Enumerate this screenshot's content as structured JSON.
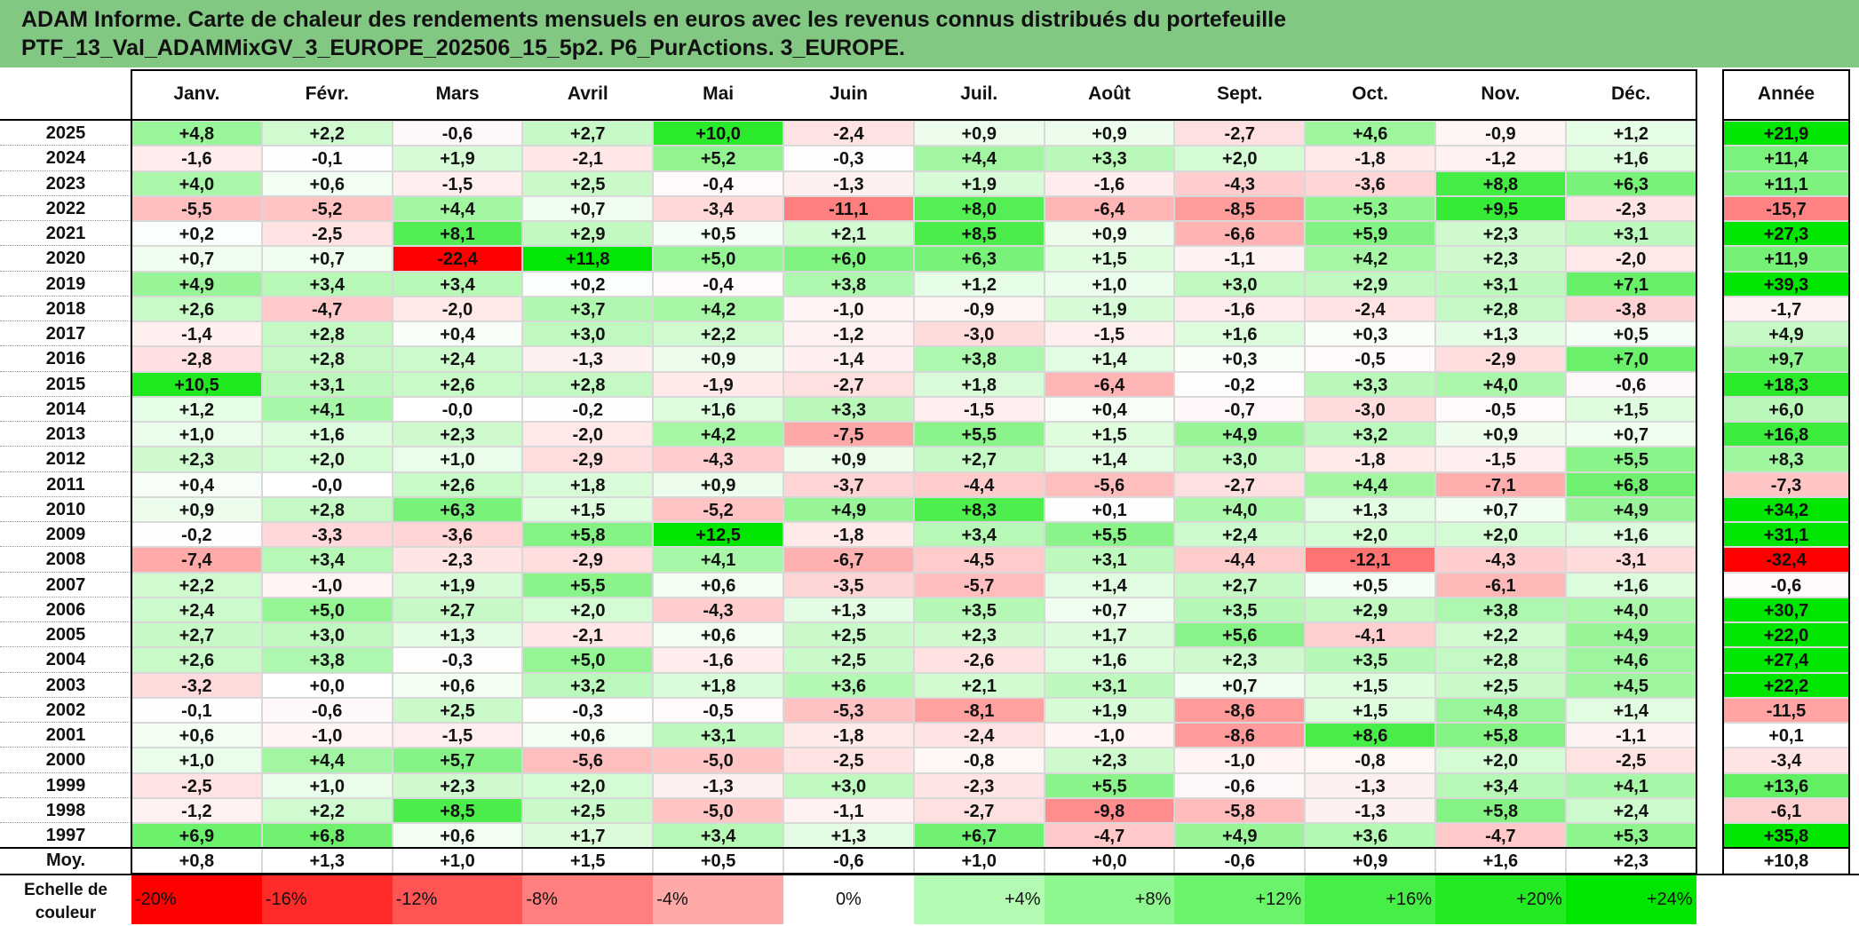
{
  "title_lines": [
    "ADAM Informe. Carte de chaleur des rendements mensuels en euros avec les revenus connus distribués du portefeuille",
    "PTF_13_Val_ADAMMixGV_3_EUROPE_202506_15_5p2. P6_PurActions. 3_EUROPE."
  ],
  "chart_data": {
    "type": "heatmap",
    "months": [
      "Janv.",
      "Févr.",
      "Mars",
      "Avril",
      "Mai",
      "Juin",
      "Juil.",
      "Août",
      "Sept.",
      "Oct.",
      "Nov.",
      "Déc."
    ],
    "annual_header": "Année",
    "rows": [
      {
        "year": "2025",
        "values": [
          "+4,8",
          "+2,2",
          "-0,6",
          "+2,7",
          "+10,0",
          "-2,4",
          "+0,9",
          "+0,9",
          "-2,7",
          "+4,6",
          "-0,9",
          "+1,2"
        ],
        "annual": "+21,9"
      },
      {
        "year": "2024",
        "values": [
          "-1,6",
          "-0,1",
          "+1,9",
          "-2,1",
          "+5,2",
          "-0,3",
          "+4,4",
          "+3,3",
          "+2,0",
          "-1,8",
          "-1,2",
          "+1,6"
        ],
        "annual": "+11,4"
      },
      {
        "year": "2023",
        "values": [
          "+4,0",
          "+0,6",
          "-1,5",
          "+2,5",
          "-0,4",
          "-1,3",
          "+1,9",
          "-1,6",
          "-4,3",
          "-3,6",
          "+8,8",
          "+6,3"
        ],
        "annual": "+11,1"
      },
      {
        "year": "2022",
        "values": [
          "-5,5",
          "-5,2",
          "+4,4",
          "+0,7",
          "-3,4",
          "-11,1",
          "+8,0",
          "-6,4",
          "-8,5",
          "+5,3",
          "+9,5",
          "-2,3"
        ],
        "annual": "-15,7"
      },
      {
        "year": "2021",
        "values": [
          "+0,2",
          "-2,5",
          "+8,1",
          "+2,9",
          "+0,5",
          "+2,1",
          "+8,5",
          "+0,9",
          "-6,6",
          "+5,9",
          "+2,3",
          "+3,1"
        ],
        "annual": "+27,3"
      },
      {
        "year": "2020",
        "values": [
          "+0,7",
          "+0,7",
          "-22,4",
          "+11,8",
          "+5,0",
          "+6,0",
          "+6,3",
          "+1,5",
          "-1,1",
          "+4,2",
          "+2,3",
          "-2,0"
        ],
        "annual": "+11,9"
      },
      {
        "year": "2019",
        "values": [
          "+4,9",
          "+3,4",
          "+3,4",
          "+0,2",
          "-0,4",
          "+3,8",
          "+1,2",
          "+1,0",
          "+3,0",
          "+2,9",
          "+3,1",
          "+7,1"
        ],
        "annual": "+39,3"
      },
      {
        "year": "2018",
        "values": [
          "+2,6",
          "-4,7",
          "-2,0",
          "+3,7",
          "+4,2",
          "-1,0",
          "-0,9",
          "+1,9",
          "-1,6",
          "-2,4",
          "+2,8",
          "-3,8"
        ],
        "annual": "-1,7"
      },
      {
        "year": "2017",
        "values": [
          "-1,4",
          "+2,8",
          "+0,4",
          "+3,0",
          "+2,2",
          "-1,2",
          "-3,0",
          "-1,5",
          "+1,6",
          "+0,3",
          "+1,3",
          "+0,5"
        ],
        "annual": "+4,9"
      },
      {
        "year": "2016",
        "values": [
          "-2,8",
          "+2,8",
          "+2,4",
          "-1,3",
          "+0,9",
          "-1,4",
          "+3,8",
          "+1,4",
          "+0,3",
          "-0,5",
          "-2,9",
          "+7,0"
        ],
        "annual": "+9,7"
      },
      {
        "year": "2015",
        "values": [
          "+10,5",
          "+3,1",
          "+2,6",
          "+2,8",
          "-1,9",
          "-2,7",
          "+1,8",
          "-6,4",
          "-0,2",
          "+3,3",
          "+4,0",
          "-0,6"
        ],
        "annual": "+18,3"
      },
      {
        "year": "2014",
        "values": [
          "+1,2",
          "+4,1",
          "-0,0",
          "-0,2",
          "+1,6",
          "+3,3",
          "-1,5",
          "+0,4",
          "-0,7",
          "-3,0",
          "-0,5",
          "+1,5"
        ],
        "annual": "+6,0"
      },
      {
        "year": "2013",
        "values": [
          "+1,0",
          "+1,6",
          "+2,3",
          "-2,0",
          "+4,2",
          "-7,5",
          "+5,5",
          "+1,5",
          "+4,9",
          "+3,2",
          "+0,9",
          "+0,7"
        ],
        "annual": "+16,8"
      },
      {
        "year": "2012",
        "values": [
          "+2,3",
          "+2,0",
          "+1,0",
          "-2,9",
          "-4,3",
          "+0,9",
          "+2,7",
          "+1,4",
          "+3,0",
          "-1,8",
          "-1,5",
          "+5,5"
        ],
        "annual": "+8,3"
      },
      {
        "year": "2011",
        "values": [
          "+0,4",
          "-0,0",
          "+2,6",
          "+1,8",
          "+0,9",
          "-3,7",
          "-4,4",
          "-5,6",
          "-2,7",
          "+4,4",
          "-7,1",
          "+6,8"
        ],
        "annual": "-7,3"
      },
      {
        "year": "2010",
        "values": [
          "+0,9",
          "+2,8",
          "+6,3",
          "+1,5",
          "-5,2",
          "+4,9",
          "+8,3",
          "+0,1",
          "+4,0",
          "+1,3",
          "+0,7",
          "+4,9"
        ],
        "annual": "+34,2"
      },
      {
        "year": "2009",
        "values": [
          "-0,2",
          "-3,3",
          "-3,6",
          "+5,8",
          "+12,5",
          "-1,8",
          "+3,4",
          "+5,5",
          "+2,4",
          "+2,0",
          "+2,0",
          "+1,6"
        ],
        "annual": "+31,1"
      },
      {
        "year": "2008",
        "values": [
          "-7,4",
          "+3,4",
          "-2,3",
          "-2,9",
          "+4,1",
          "-6,7",
          "-4,5",
          "+3,1",
          "-4,4",
          "-12,1",
          "-4,3",
          "-3,1"
        ],
        "annual": "-32,4"
      },
      {
        "year": "2007",
        "values": [
          "+2,2",
          "-1,0",
          "+1,9",
          "+5,5",
          "+0,6",
          "-3,5",
          "-5,7",
          "+1,4",
          "+2,7",
          "+0,5",
          "-6,1",
          "+1,6"
        ],
        "annual": "-0,6"
      },
      {
        "year": "2006",
        "values": [
          "+2,4",
          "+5,0",
          "+2,7",
          "+2,0",
          "-4,3",
          "+1,3",
          "+3,5",
          "+0,7",
          "+3,5",
          "+2,9",
          "+3,8",
          "+4,0"
        ],
        "annual": "+30,7"
      },
      {
        "year": "2005",
        "values": [
          "+2,7",
          "+3,0",
          "+1,3",
          "-2,1",
          "+0,6",
          "+2,5",
          "+2,3",
          "+1,7",
          "+5,6",
          "-4,1",
          "+2,2",
          "+4,9"
        ],
        "annual": "+22,0"
      },
      {
        "year": "2004",
        "values": [
          "+2,6",
          "+3,8",
          "-0,3",
          "+5,0",
          "-1,6",
          "+2,5",
          "-2,6",
          "+1,6",
          "+2,3",
          "+3,5",
          "+2,8",
          "+4,6"
        ],
        "annual": "+27,4"
      },
      {
        "year": "2003",
        "values": [
          "-3,2",
          "+0,0",
          "+0,6",
          "+3,2",
          "+1,8",
          "+3,6",
          "+2,1",
          "+3,1",
          "+0,7",
          "+1,5",
          "+2,5",
          "+4,5"
        ],
        "annual": "+22,2"
      },
      {
        "year": "2002",
        "values": [
          "-0,1",
          "-0,6",
          "+2,5",
          "-0,3",
          "-0,5",
          "-5,3",
          "-8,1",
          "+1,9",
          "-8,6",
          "+1,5",
          "+4,8",
          "+1,4"
        ],
        "annual": "-11,5"
      },
      {
        "year": "2001",
        "values": [
          "+0,6",
          "-1,0",
          "-1,5",
          "+0,6",
          "+3,1",
          "-1,8",
          "-2,4",
          "-1,0",
          "-8,6",
          "+8,6",
          "+5,8",
          "-1,1"
        ],
        "annual": "+0,1"
      },
      {
        "year": "2000",
        "values": [
          "+1,0",
          "+4,4",
          "+5,7",
          "-5,6",
          "-5,0",
          "-2,5",
          "-0,8",
          "+2,3",
          "-1,0",
          "-0,8",
          "+2,0",
          "-2,5"
        ],
        "annual": "-3,4"
      },
      {
        "year": "1999",
        "values": [
          "-2,5",
          "+1,0",
          "+2,3",
          "+2,0",
          "-1,3",
          "+3,0",
          "-2,3",
          "+5,5",
          "-0,6",
          "-1,3",
          "+3,4",
          "+4,1"
        ],
        "annual": "+13,6"
      },
      {
        "year": "1998",
        "values": [
          "-1,2",
          "+2,2",
          "+8,5",
          "+2,5",
          "-5,0",
          "-1,1",
          "-2,7",
          "-9,8",
          "-5,8",
          "-1,3",
          "+5,8",
          "+2,4"
        ],
        "annual": "-6,1"
      },
      {
        "year": "1997",
        "values": [
          "+6,9",
          "+6,8",
          "+0,6",
          "+1,7",
          "+3,4",
          "+1,3",
          "+6,7",
          "-4,7",
          "+4,9",
          "+3,6",
          "-4,7",
          "+5,3"
        ],
        "annual": "+35,8"
      }
    ],
    "average": {
      "label": "Moy.",
      "values": [
        "+0,8",
        "+1,3",
        "+1,0",
        "+1,5",
        "+0,5",
        "-0,6",
        "+1,0",
        "+0,0",
        "-0,6",
        "+0,9",
        "+1,6",
        "+2,3"
      ],
      "annual": "+10,8"
    },
    "scale": {
      "label_lines": [
        "Echelle de",
        "couleur"
      ],
      "steps": [
        "-20%",
        "-16%",
        "-12%",
        "-8%",
        "-4%",
        "0%",
        "+4%",
        "+8%",
        "+12%",
        "+16%",
        "+20%",
        "+24%"
      ],
      "step_values": [
        -20,
        -16,
        -12,
        -8,
        -4,
        0,
        4,
        8,
        12,
        16,
        20,
        24
      ]
    },
    "colors": {
      "negative_max": "#ff0000",
      "positive_max": "#00e600",
      "neutral": "#ffffff",
      "title_bg": "#82c882"
    }
  }
}
